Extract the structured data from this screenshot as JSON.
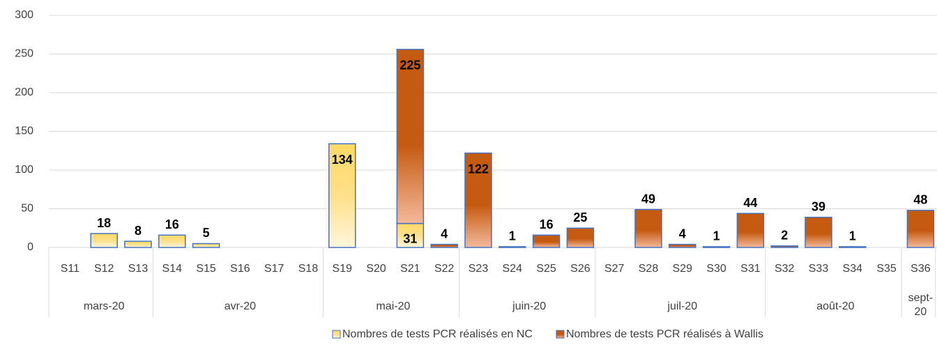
{
  "chart_data": {
    "type": "bar",
    "stacked": true,
    "groups": [
      {
        "label": "mars-20",
        "categories": [
          "S11",
          "S12",
          "S13"
        ]
      },
      {
        "label": "avr-20",
        "categories": [
          "S14",
          "S15",
          "S16",
          "S17",
          "S18"
        ]
      },
      {
        "label": "mai-20",
        "categories": [
          "S19",
          "S20",
          "S21",
          "S22"
        ]
      },
      {
        "label": "juin-20",
        "categories": [
          "S23",
          "S24",
          "S25",
          "S26"
        ]
      },
      {
        "label": "juil-20",
        "categories": [
          "S27",
          "S28",
          "S29",
          "S30",
          "S31"
        ]
      },
      {
        "label": "août-20",
        "categories": [
          "S32",
          "S33",
          "S34",
          "S35"
        ]
      },
      {
        "label": "sept-20",
        "categories": [
          "S36"
        ]
      }
    ],
    "series": [
      {
        "name": "Nombres de tests PCR réalisés en NC",
        "color": "#ffd966",
        "values": [
          null,
          18,
          8,
          16,
          5,
          null,
          null,
          null,
          134,
          null,
          31,
          null,
          null,
          null,
          null,
          null,
          null,
          null,
          null,
          null,
          null,
          null,
          null,
          null,
          null,
          null
        ]
      },
      {
        "name": "Nombres de tests PCR réalisés à Wallis",
        "color": "#c55a11",
        "values": [
          null,
          null,
          null,
          null,
          null,
          null,
          null,
          null,
          null,
          null,
          225,
          4,
          122,
          1,
          16,
          25,
          null,
          49,
          4,
          1,
          44,
          2,
          39,
          1,
          null,
          48
        ]
      }
    ],
    "ylim": [
      0,
      300
    ],
    "yticks": [
      0,
      50,
      100,
      150,
      200,
      250,
      300
    ],
    "grid": true,
    "legend": "bottom"
  }
}
